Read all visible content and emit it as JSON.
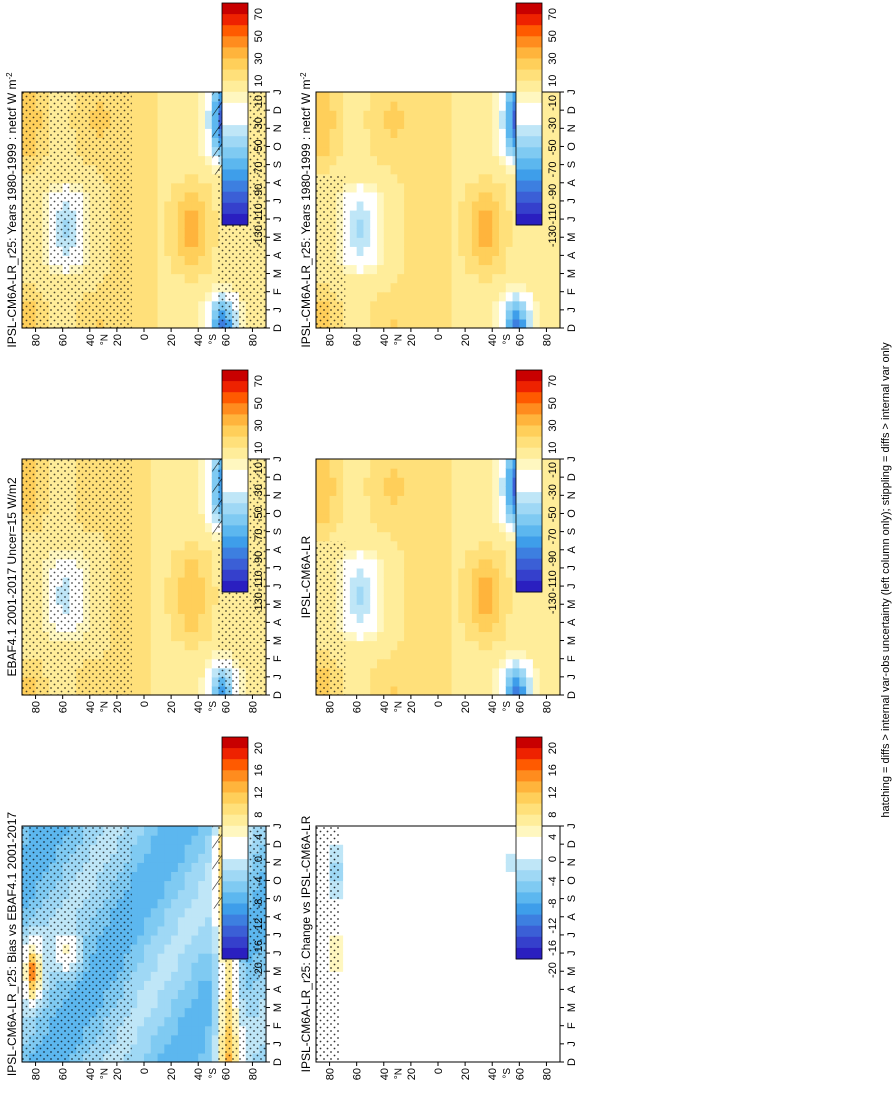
{
  "figure": {
    "footnote": "hatching = diffs > internal var-obs uncertainty (left column only); stippling = diffs > internal var only"
  },
  "colorscales": {
    "absolute": {
      "labels": [
        "70",
        "50",
        "30",
        "10",
        "-10",
        "-30",
        "-50",
        "-70",
        "-90",
        "-110",
        "-130"
      ],
      "colors": [
        "#c80000",
        "#ee2200",
        "#ff5a00",
        "#ff8c1e",
        "#ffb43c",
        "#ffcf5a",
        "#ffe07a",
        "#ffed9a",
        "#fff7c0",
        "#ffffff",
        "#ffffff",
        "#bfe6f7",
        "#9fd8f5",
        "#7fcaf2",
        "#5cb7ef",
        "#3e9eea",
        "#3d7fe0",
        "#3b5fd6",
        "#3540cc",
        "#2a1fc0"
      ]
    },
    "difference": {
      "labels": [
        "20",
        "16",
        "12",
        "8",
        "4",
        "0",
        "-4",
        "-8",
        "-12",
        "-16",
        "-20"
      ],
      "colors": [
        "#c80000",
        "#ee2200",
        "#ff5a00",
        "#ff8c1e",
        "#ffb43c",
        "#ffcf5a",
        "#ffe07a",
        "#ffed9a",
        "#fff7c0",
        "#ffffff",
        "#ffffff",
        "#bfe6f7",
        "#9fd8f5",
        "#7fcaf2",
        "#5cb7ef",
        "#3e9eea",
        "#3d7fe0",
        "#3b5fd6",
        "#3540cc",
        "#2a1fc0"
      ]
    }
  },
  "chart_data": [
    {
      "type": "heatmap",
      "panel": "row1-left",
      "title": "IPSL-CM6A-LR_r25: Years 1980-1999 : netcf W m",
      "title_sup": "-2",
      "x_ticks": [
        "D",
        "J",
        "F",
        "M",
        "A",
        "M",
        "J",
        "J",
        "A",
        "S",
        "O",
        "N",
        "D",
        "J"
      ],
      "y_ticks": [
        "80",
        "60",
        "40",
        "20",
        "0",
        "20",
        "40",
        "60",
        "80"
      ],
      "y_unit_north": "°N",
      "y_unit_south": "°S",
      "colorscale": "absolute",
      "features": [
        {
          "lat": 60,
          "month": 4.5,
          "value": -55,
          "desc": "NH summer negative lobe"
        },
        {
          "lat": -60,
          "month": 0.5,
          "value": -110,
          "desc": "SH summer negative"
        },
        {
          "lat": -60,
          "month": 11.5,
          "value": -100,
          "desc": "SH summer negative"
        },
        {
          "lat": 80,
          "month": 1,
          "value": 25,
          "desc": "Arctic winter positive"
        },
        {
          "lat": -35,
          "month": 6,
          "value": 30,
          "desc": "SH subtropical winter positive"
        }
      ]
    },
    {
      "type": "heatmap",
      "panel": "row1-right",
      "title": "IPSL-CM6A-LR_r25: Years 1980-1999 : netcf W m",
      "title_sup": "-2",
      "x_ticks": [
        "D",
        "J",
        "F",
        "M",
        "A",
        "M",
        "J",
        "J",
        "A",
        "S",
        "O",
        "N",
        "D",
        "J"
      ],
      "y_ticks": [
        "80",
        "60",
        "40",
        "20",
        "0",
        "20",
        "40",
        "60",
        "80"
      ],
      "y_unit_north": "°N",
      "y_unit_south": "°S",
      "colorscale": "absolute",
      "features": [
        {
          "lat": 60,
          "month": 4.5,
          "value": -55
        },
        {
          "lat": -60,
          "month": 0.5,
          "value": -110
        },
        {
          "lat": -60,
          "month": 11.5,
          "value": -100
        },
        {
          "lat": -35,
          "month": 6,
          "value": 35
        }
      ]
    },
    {
      "type": "heatmap",
      "panel": "row2-left",
      "title": "EBAF4.1 2001-2017 Uncer=15 W/m2",
      "x_ticks": [
        "D",
        "J",
        "F",
        "M",
        "A",
        "M",
        "J",
        "J",
        "A",
        "S",
        "O",
        "N",
        "D",
        "J"
      ],
      "y_ticks": [
        "80",
        "60",
        "40",
        "20",
        "0",
        "20",
        "40",
        "60",
        "80"
      ],
      "y_unit_north": "°N",
      "y_unit_south": "°S",
      "colorscale": "absolute",
      "features": [
        {
          "lat": 60,
          "month": 4.5,
          "value": -45
        },
        {
          "lat": -60,
          "month": 0.5,
          "value": -100
        },
        {
          "lat": -60,
          "month": 11.5,
          "value": -95
        },
        {
          "lat": -35,
          "month": 6,
          "value": 25
        }
      ]
    },
    {
      "type": "heatmap",
      "panel": "row2-right",
      "title": "IPSL-CM6A-LR",
      "x_ticks": [
        "D",
        "J",
        "F",
        "M",
        "A",
        "M",
        "J",
        "J",
        "A",
        "S",
        "O",
        "N",
        "D",
        "J"
      ],
      "y_ticks": [
        "80",
        "60",
        "40",
        "20",
        "0",
        "20",
        "40",
        "60",
        "80"
      ],
      "y_unit_north": "°N",
      "y_unit_south": "°S",
      "colorscale": "absolute",
      "features": [
        {
          "lat": 60,
          "month": 4.5,
          "value": -55
        },
        {
          "lat": -60,
          "month": 0.5,
          "value": -110
        },
        {
          "lat": -60,
          "month": 11.5,
          "value": -100
        },
        {
          "lat": -35,
          "month": 6,
          "value": 35
        }
      ]
    },
    {
      "type": "heatmap",
      "panel": "row3-left",
      "title": "IPSL-CM6A-LR_r25: Bias vs EBAF4.1 2001-2017",
      "x_ticks": [
        "D",
        "J",
        "F",
        "M",
        "A",
        "M",
        "J",
        "J",
        "A",
        "S",
        "O",
        "N",
        "D",
        "J"
      ],
      "y_ticks": [
        "80",
        "60",
        "40",
        "20",
        "0",
        "20",
        "40",
        "60",
        "80"
      ],
      "y_unit_north": "°N",
      "y_unit_south": "°S",
      "colorscale": "difference",
      "features": [
        {
          "lat": 80,
          "month": 5,
          "value": 18,
          "desc": "Arctic summer positive bias"
        },
        {
          "lat": 55,
          "month": 6,
          "value": 8
        },
        {
          "lat": -60,
          "month": 1,
          "value": 16,
          "desc": "Southern Ocean positive bias"
        },
        {
          "lat": 0,
          "month": 6,
          "value": -12,
          "desc": "widespread negative bias"
        }
      ]
    },
    {
      "type": "heatmap",
      "panel": "row3-right",
      "title": "IPSL-CM6A-LR_r25: Change vs IPSL-CM6A-LR",
      "x_ticks": [
        "D",
        "J",
        "F",
        "M",
        "A",
        "M",
        "J",
        "J",
        "A",
        "S",
        "O",
        "N",
        "D",
        "J"
      ],
      "y_ticks": [
        "80",
        "60",
        "40",
        "20",
        "0",
        "20",
        "40",
        "60",
        "80"
      ],
      "y_unit_north": "°N",
      "y_unit_south": "°S",
      "colorscale": "difference",
      "features": [
        {
          "lat": 75,
          "month": 6,
          "value": 5
        },
        {
          "lat": 80,
          "month": 10.5,
          "value": -5
        },
        {
          "lat": -55,
          "month": 11,
          "value": -4
        }
      ]
    }
  ]
}
